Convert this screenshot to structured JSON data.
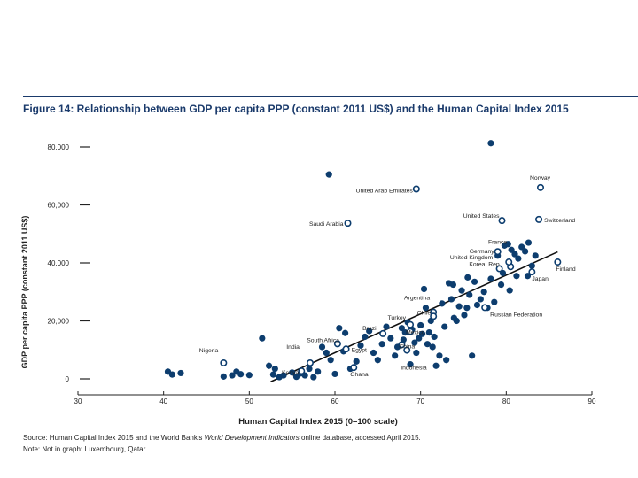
{
  "figure": {
    "title": "Figure 14: Relationship between GDP per capita PPP (constant 2011 US$) and the Human Capital Index 2015",
    "source_prefix": "Source: Human Capital Index 2015 and the World Bank's ",
    "source_italic": "World Development Indicators",
    "source_suffix": " online database, accessed April 2015.",
    "note": "Note: Not in graph: Luxembourg, Qatar."
  },
  "colors": {
    "accent": "#0d3d6e",
    "text": "#222222",
    "title": "#1a3a6b"
  },
  "chart_data": {
    "type": "scatter",
    "title": "Figure 14: Relationship between GDP per capita PPP (constant 2011 US$) and the Human Capital Index 2015",
    "xlabel": "Human Capital Index 2015 (0–100 scale)",
    "ylabel": "GDP per capita PPP (constant 2011 US$)",
    "xlim": [
      30,
      90
    ],
    "ylim": [
      0,
      85000
    ],
    "x_ticks": [
      30,
      40,
      50,
      60,
      70,
      80,
      90
    ],
    "x_tick_labels": [
      "30",
      "40",
      "50",
      "60",
      "70",
      "80",
      "90"
    ],
    "y_ticks": [
      0,
      20000,
      40000,
      60000,
      80000
    ],
    "y_tick_labels": [
      "0",
      "20,000",
      "40,000",
      "60,000",
      "80,000"
    ],
    "trendline": {
      "x": [
        52.5,
        86
      ],
      "y": [
        -1000,
        43800
      ]
    },
    "labeled_points": [
      {
        "label": "Norway",
        "x": 84,
        "y": 66000
      },
      {
        "label": "United Arab Emirates",
        "x": 69.5,
        "y": 65500
      },
      {
        "label": "United States",
        "x": 79.5,
        "y": 54600
      },
      {
        "label": "Switzerland",
        "x": 83.8,
        "y": 55000
      },
      {
        "label": "Saudi Arabia",
        "x": 61.5,
        "y": 53700
      },
      {
        "label": "France",
        "x": 80.5,
        "y": 38700
      },
      {
        "label": "Germany",
        "x": 79,
        "y": 43900
      },
      {
        "label": "United Kingdom",
        "x": 80.3,
        "y": 40300
      },
      {
        "label": "Korea, Rep.",
        "x": 79.2,
        "y": 38000
      },
      {
        "label": "Finland",
        "x": 86,
        "y": 40300
      },
      {
        "label": "Japan",
        "x": 83,
        "y": 36900
      },
      {
        "label": "Argentina",
        "x": 71.5,
        "y": 23000
      },
      {
        "label": "Chile",
        "x": 71.5,
        "y": 21600
      },
      {
        "label": "Russian Federation",
        "x": 77.5,
        "y": 24600
      },
      {
        "label": "Turkey",
        "x": 68.8,
        "y": 18700
      },
      {
        "label": "Brazil",
        "x": 65.6,
        "y": 15600
      },
      {
        "label": "Mexico",
        "x": 68.8,
        "y": 16300
      },
      {
        "label": "China",
        "x": 67.8,
        "y": 11800
      },
      {
        "label": "South Africa",
        "x": 60.3,
        "y": 12100
      },
      {
        "label": "India",
        "x": 57.1,
        "y": 5500
      },
      {
        "label": "Egypt",
        "x": 61.3,
        "y": 10300
      },
      {
        "label": "Kenya",
        "x": 56.1,
        "y": 2700
      },
      {
        "label": "Ghana",
        "x": 62.2,
        "y": 3900
      },
      {
        "label": "Indonesia",
        "x": 68.4,
        "y": 9900
      },
      {
        "label": "Nigeria",
        "x": 47,
        "y": 5500
      }
    ],
    "other_points": [
      [
        78.2,
        81300
      ],
      [
        59.3,
        70500
      ],
      [
        40.5,
        2500
      ],
      [
        41,
        1500
      ],
      [
        42,
        2000
      ],
      [
        47,
        800
      ],
      [
        48,
        1200
      ],
      [
        48.5,
        2500
      ],
      [
        49,
        1600
      ],
      [
        50,
        1300
      ],
      [
        51.5,
        14000
      ],
      [
        52.3,
        4500
      ],
      [
        52.8,
        1500
      ],
      [
        53,
        3500
      ],
      [
        53.5,
        600
      ],
      [
        54,
        1200
      ],
      [
        55,
        2200
      ],
      [
        55.5,
        700
      ],
      [
        56,
        1900
      ],
      [
        56.5,
        1200
      ],
      [
        57,
        3500
      ],
      [
        57.5,
        600
      ],
      [
        58,
        2500
      ],
      [
        58.5,
        11000
      ],
      [
        59,
        9000
      ],
      [
        59.5,
        6500
      ],
      [
        60,
        1700
      ],
      [
        60.5,
        17500
      ],
      [
        61,
        9500
      ],
      [
        61.2,
        15800
      ],
      [
        61.8,
        3500
      ],
      [
        62.5,
        6000
      ],
      [
        63,
        11500
      ],
      [
        63.5,
        14500
      ],
      [
        64,
        16500
      ],
      [
        64.5,
        9000
      ],
      [
        65,
        6500
      ],
      [
        65.5,
        12000
      ],
      [
        66,
        18000
      ],
      [
        66.5,
        14000
      ],
      [
        67,
        8000
      ],
      [
        67.3,
        11000
      ],
      [
        67.8,
        17500
      ],
      [
        68,
        13500
      ],
      [
        68.2,
        16000
      ],
      [
        68.5,
        19500
      ],
      [
        68.8,
        5000
      ],
      [
        69,
        17000
      ],
      [
        69.3,
        12500
      ],
      [
        69.5,
        9000
      ],
      [
        69.8,
        14000
      ],
      [
        70,
        18500
      ],
      [
        70.2,
        15500
      ],
      [
        70.4,
        31000
      ],
      [
        70.6,
        24500
      ],
      [
        70.8,
        12000
      ],
      [
        71,
        16000
      ],
      [
        71.2,
        20000
      ],
      [
        71.4,
        11000
      ],
      [
        71.6,
        14500
      ],
      [
        71.8,
        4500
      ],
      [
        72.2,
        8000
      ],
      [
        72.5,
        26000
      ],
      [
        72.8,
        18000
      ],
      [
        73,
        6500
      ],
      [
        73.3,
        33000
      ],
      [
        73.6,
        27500
      ],
      [
        73.9,
        21000
      ],
      [
        74.2,
        20000
      ],
      [
        74.5,
        25000
      ],
      [
        74.8,
        30500
      ],
      [
        75.1,
        22000
      ],
      [
        75.4,
        24500
      ],
      [
        75.7,
        29000
      ],
      [
        76,
        8000
      ],
      [
        76.3,
        33500
      ],
      [
        76.6,
        25500
      ],
      [
        77,
        27500
      ],
      [
        77.4,
        30000
      ],
      [
        77.8,
        24500
      ],
      [
        78.2,
        34500
      ],
      [
        78.6,
        26500
      ],
      [
        79,
        42500
      ],
      [
        79.4,
        32500
      ],
      [
        79.8,
        46000
      ],
      [
        80.2,
        46500
      ],
      [
        80.6,
        44500
      ],
      [
        81,
        43000
      ],
      [
        81.4,
        41500
      ],
      [
        81.8,
        45500
      ],
      [
        82.2,
        44000
      ],
      [
        82.6,
        47000
      ],
      [
        83,
        39000
      ],
      [
        83.4,
        42500
      ],
      [
        79.6,
        36500
      ],
      [
        80.4,
        30500
      ],
      [
        81.2,
        35500
      ],
      [
        82.5,
        35500
      ],
      [
        73.8,
        32500
      ],
      [
        75.5,
        35000
      ]
    ]
  }
}
